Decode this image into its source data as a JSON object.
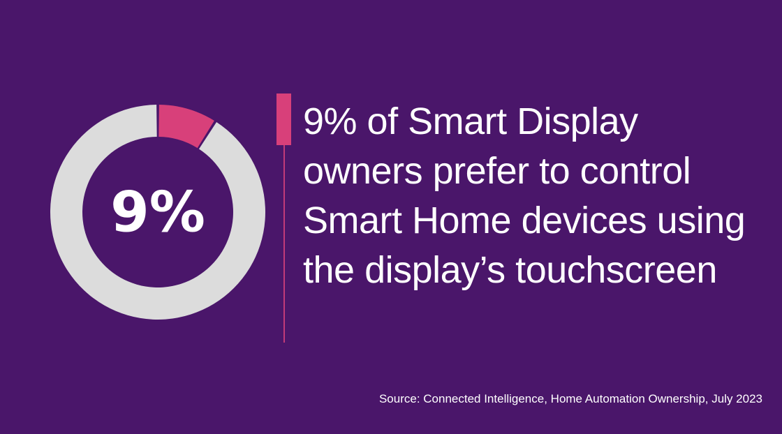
{
  "theme": {
    "background": "#4a166a",
    "accent": "#d8407a",
    "ring_track": "#dcdcdc",
    "text": "#ffffff",
    "line": "#c23b78"
  },
  "chart_data": {
    "type": "pie",
    "variant": "donut",
    "center_label": "9%",
    "slices": [
      {
        "label": "9%",
        "value": 9,
        "color": "#d8407a"
      },
      {
        "value": 91,
        "color": "#dcdcdc"
      }
    ]
  },
  "headline": "9% of Smart Display owners prefer to control Smart Home devices using the display’s touchscreen",
  "source": "Source: Connected Intelligence, Home Automation Ownership, July 2023"
}
